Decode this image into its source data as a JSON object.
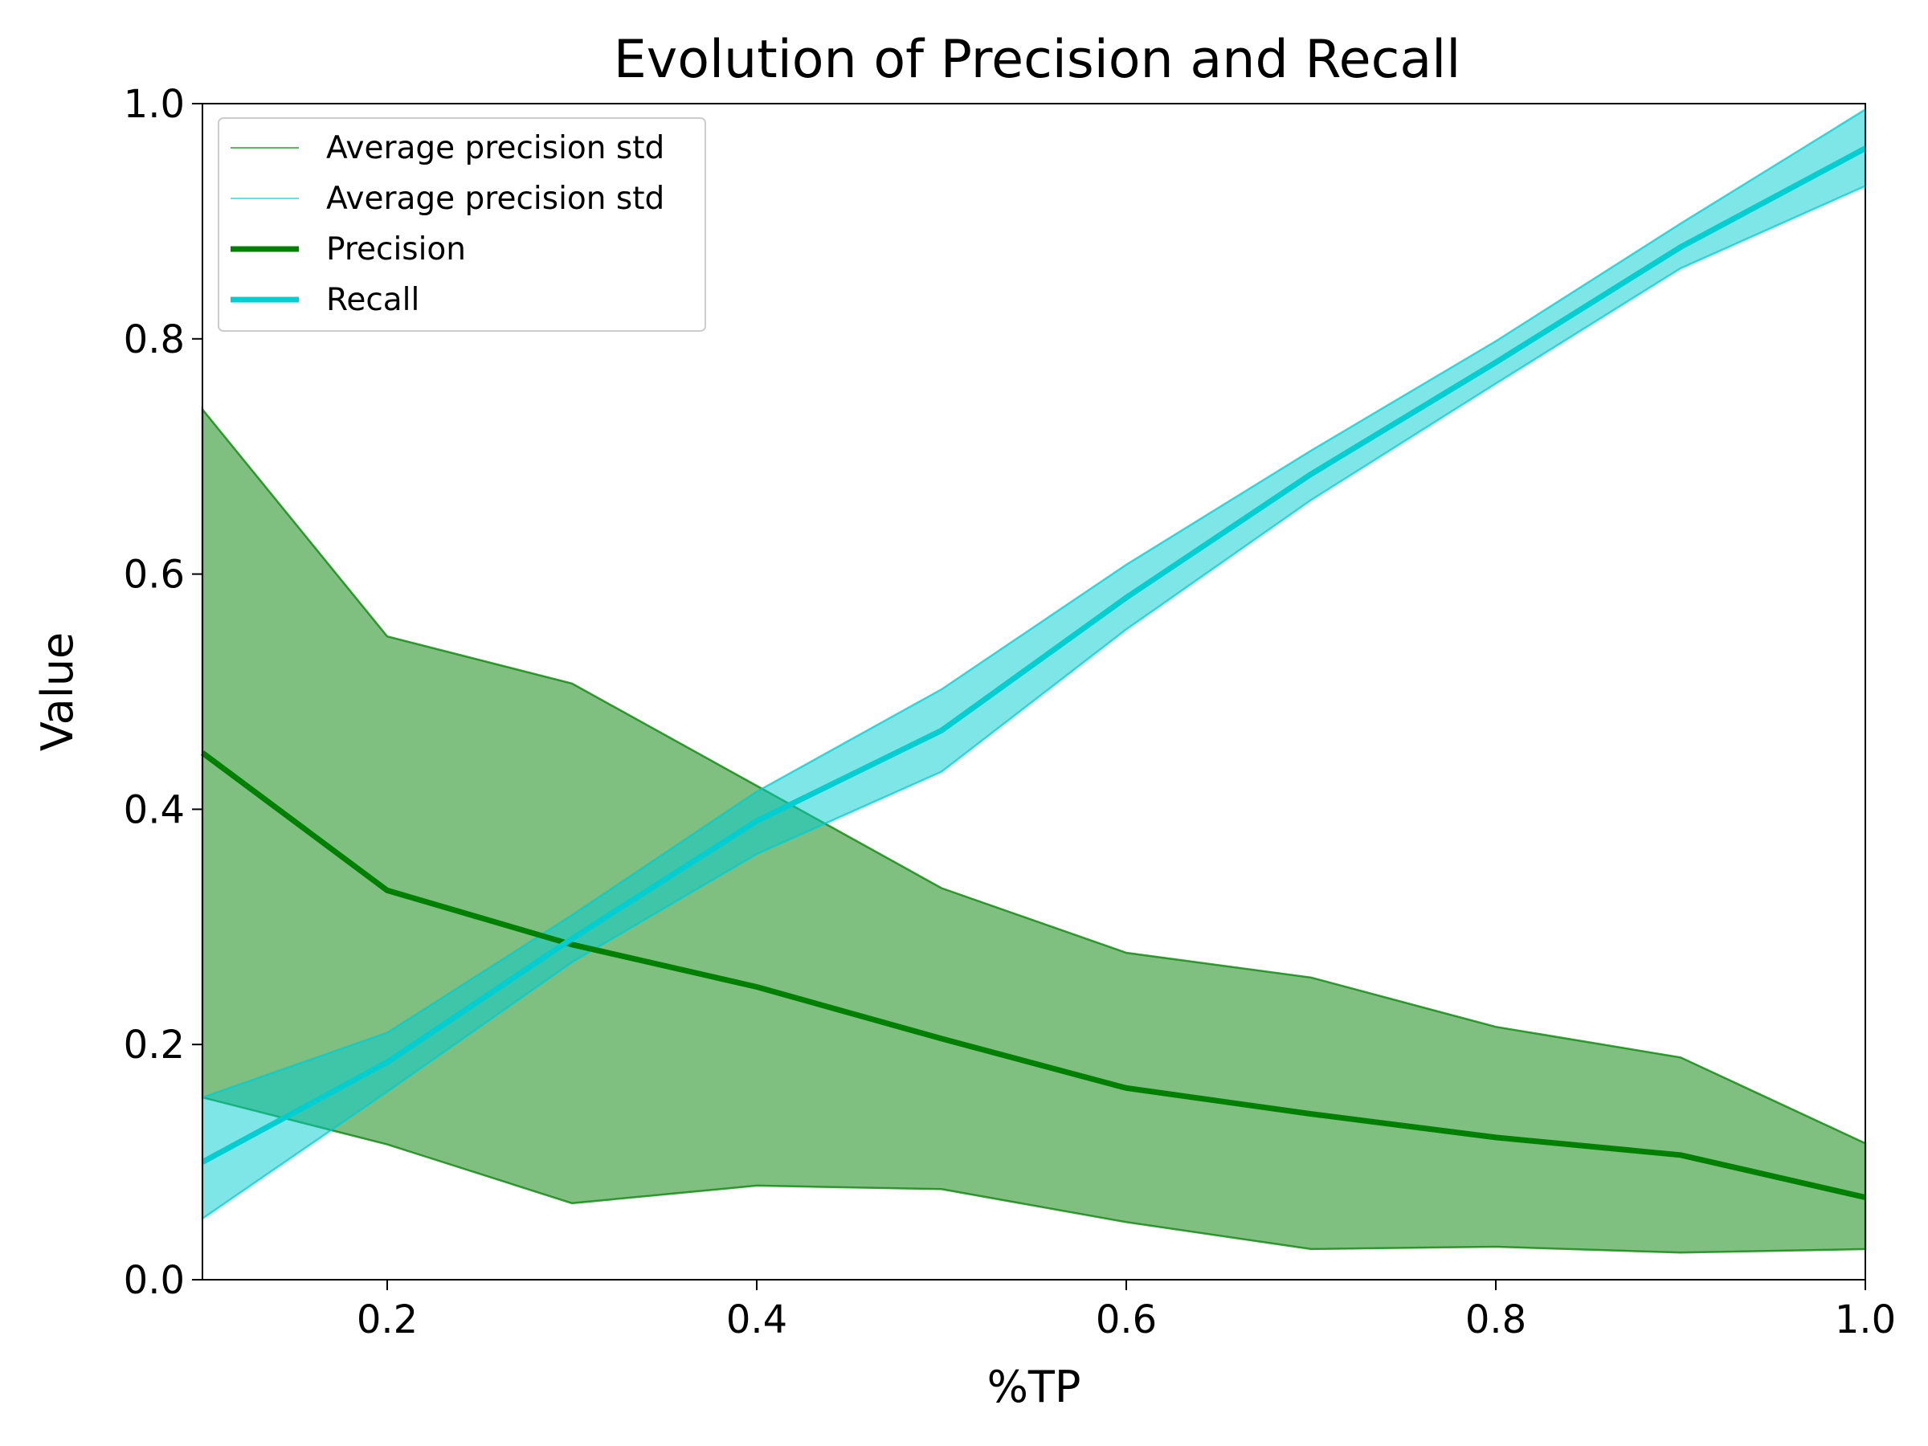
{
  "chart_data": {
    "type": "line",
    "title": "Evolution of Precision and Recall",
    "xlabel": "%TP",
    "ylabel": "Value",
    "xlim": [
      0.1,
      1.0
    ],
    "ylim": [
      0.0,
      1.0
    ],
    "xticks": [
      0.2,
      0.4,
      0.6,
      0.8,
      1.0
    ],
    "xtick_labels": [
      "0.2",
      "0.4",
      "0.6",
      "0.8",
      "1.0"
    ],
    "yticks": [
      0.0,
      0.2,
      0.4,
      0.6,
      0.8,
      1.0
    ],
    "ytick_labels": [
      "0.0",
      "0.2",
      "0.4",
      "0.6",
      "0.8",
      "1.0"
    ],
    "grid": false,
    "legend_position": "top-left",
    "x": [
      0.1,
      0.2,
      0.3,
      0.4,
      0.5,
      0.6,
      0.7,
      0.8,
      0.9,
      1.0
    ],
    "series": [
      {
        "name": "Precision",
        "color": "#008000",
        "values": [
          0.448,
          0.331,
          0.285,
          0.249,
          0.205,
          0.163,
          0.141,
          0.121,
          0.106,
          0.07
        ]
      },
      {
        "name": "Recall",
        "color": "#00ced1",
        "values": [
          0.1,
          0.185,
          0.29,
          0.39,
          0.467,
          0.58,
          0.685,
          0.78,
          0.878,
          0.962
        ]
      }
    ],
    "bands": [
      {
        "name": "Average precision std",
        "color": "#008000",
        "upper": [
          0.74,
          0.547,
          0.507,
          0.42,
          0.333,
          0.278,
          0.257,
          0.215,
          0.189,
          0.116
        ],
        "lower": [
          0.155,
          0.115,
          0.065,
          0.08,
          0.077,
          0.049,
          0.026,
          0.028,
          0.023,
          0.026
        ]
      },
      {
        "name": "Average precision std",
        "color": "#00ced1",
        "upper": [
          0.155,
          0.21,
          0.31,
          0.415,
          0.502,
          0.608,
          0.705,
          0.798,
          0.898,
          0.995
        ],
        "lower": [
          0.052,
          0.16,
          0.27,
          0.362,
          0.432,
          0.553,
          0.663,
          0.762,
          0.86,
          0.93
        ]
      }
    ],
    "legend": [
      {
        "label": "Average precision std",
        "kind": "band",
        "color": "#008000"
      },
      {
        "label": "Average precision std",
        "kind": "band",
        "color": "#00ced1"
      },
      {
        "label": "Precision",
        "kind": "line",
        "color": "#008000"
      },
      {
        "label": "Recall",
        "kind": "line",
        "color": "#00ced1"
      }
    ]
  }
}
